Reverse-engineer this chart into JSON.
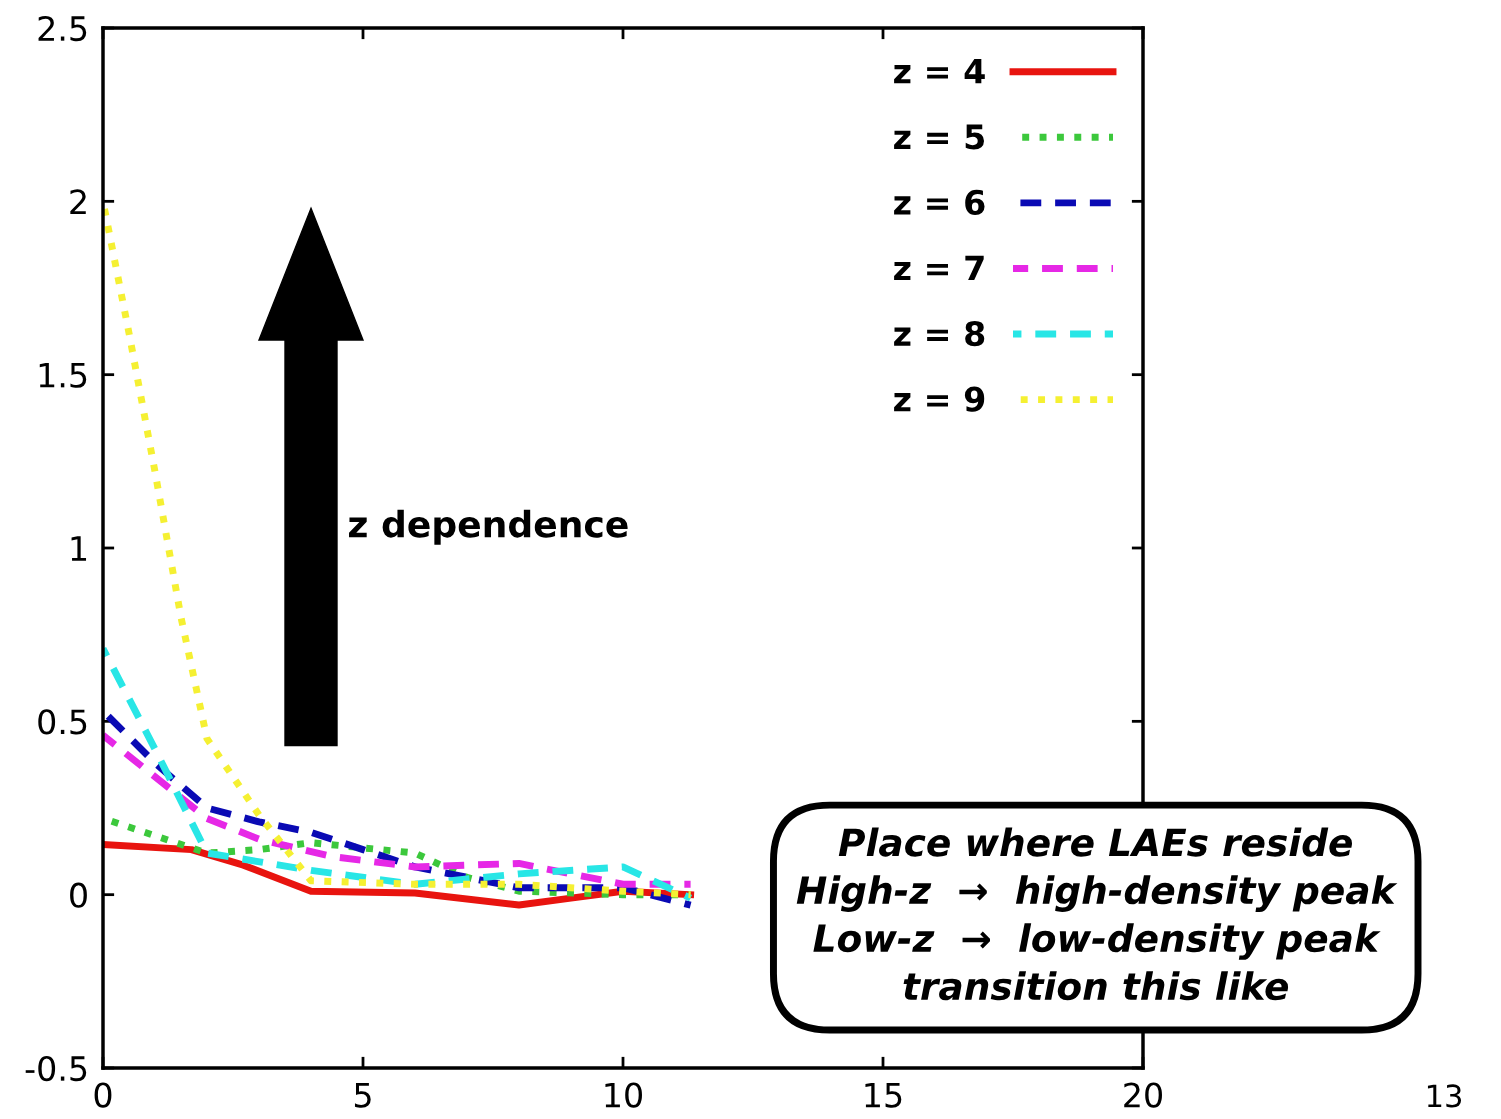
{
  "chart_data": {
    "type": "line",
    "xlim": [
      0,
      20
    ],
    "ylim": [
      -0.5,
      2.5
    ],
    "xticks": [
      0,
      5,
      10,
      15,
      20
    ],
    "yticks": [
      -0.5,
      0,
      0.5,
      1,
      1.5,
      2,
      2.5
    ],
    "grid": false,
    "legend": "top right",
    "marker": "none",
    "series": [
      {
        "name": "z = 4",
        "color": "#e8140f",
        "line_style": "solid",
        "x": [
          0,
          1.7,
          2.7,
          4,
          6,
          8,
          9,
          10,
          11.3
        ],
        "values": [
          0.145,
          0.13,
          0.085,
          0.01,
          0.005,
          -0.03,
          -0.01,
          0.01,
          0.0
        ]
      },
      {
        "name": "z = 5",
        "color": "#3cc83c",
        "line_style": "dotted",
        "x": [
          0,
          1,
          2,
          3,
          4,
          6,
          7,
          8,
          10,
          11.3
        ],
        "values": [
          0.22,
          0.17,
          0.12,
          0.13,
          0.15,
          0.12,
          0.05,
          0.01,
          0.0,
          0.0
        ]
      },
      {
        "name": "z = 6",
        "color": "#0a0ab4",
        "line_style": "dashed",
        "x": [
          0,
          1,
          2,
          3,
          4,
          5,
          6,
          8,
          10,
          11.3
        ],
        "values": [
          0.53,
          0.38,
          0.25,
          0.21,
          0.18,
          0.13,
          0.08,
          0.02,
          0.02,
          -0.03
        ]
      },
      {
        "name": "z = 7",
        "color": "#e628e6",
        "line_style": "dashed",
        "x": [
          0,
          1,
          2,
          3,
          4.4,
          6,
          8,
          10,
          11.3
        ],
        "values": [
          0.46,
          0.34,
          0.22,
          0.16,
          0.11,
          0.08,
          0.09,
          0.03,
          0.03
        ]
      },
      {
        "name": "z = 8",
        "color": "#28e6e6",
        "line_style": "dashed",
        "x": [
          0,
          1,
          2,
          4,
          6,
          8,
          10,
          11.3
        ],
        "values": [
          0.71,
          0.42,
          0.12,
          0.07,
          0.03,
          0.06,
          0.08,
          -0.01
        ]
      },
      {
        "name": "z = 9",
        "color": "#f5f032",
        "line_style": "dotted",
        "x": [
          0,
          0.5,
          1,
          1.5,
          2,
          3,
          4,
          6,
          8,
          10,
          11.3
        ],
        "values": [
          2.0,
          1.62,
          1.22,
          0.8,
          0.45,
          0.23,
          0.04,
          0.03,
          0.03,
          0.01,
          0.0
        ]
      }
    ],
    "annotations": [
      "z dependence",
      "Place where LAEs reside\nHigh-z  →  high-density peak\nLow-z  →  low-density peak\ntransition this like",
      "13"
    ]
  }
}
